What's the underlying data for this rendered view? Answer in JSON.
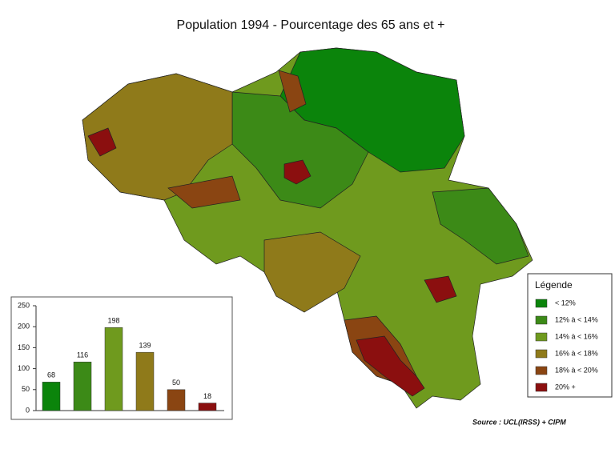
{
  "title": "Population 1994 - Pourcentage des 65 ans et +",
  "legend": {
    "title": "Légende",
    "items": [
      {
        "label": "< 12%",
        "color": "#0b840b"
      },
      {
        "label": "12% à < 14%",
        "color": "#3c8a17"
      },
      {
        "label": "14% à < 16%",
        "color": "#6f9a1e"
      },
      {
        "label": "16% à < 18%",
        "color": "#8f7a1a"
      },
      {
        "label": "18% à < 20%",
        "color": "#8a4512"
      },
      {
        "label": "20% +",
        "color": "#8b0f0f"
      }
    ]
  },
  "source": "Source : UCL(IRSS) + CIPM",
  "chart_data": {
    "type": "bar",
    "categories": [
      null,
      null,
      null,
      null,
      null,
      null
    ],
    "values": [
      68,
      116,
      198,
      139,
      50,
      18
    ],
    "colors": [
      "#0b840b",
      "#3c8a17",
      "#6f9a1e",
      "#8f7a1a",
      "#8a4512",
      "#8b0f0f"
    ],
    "ylim": [
      0,
      250
    ],
    "yticks": [
      0,
      50,
      100,
      150,
      200,
      250
    ]
  }
}
